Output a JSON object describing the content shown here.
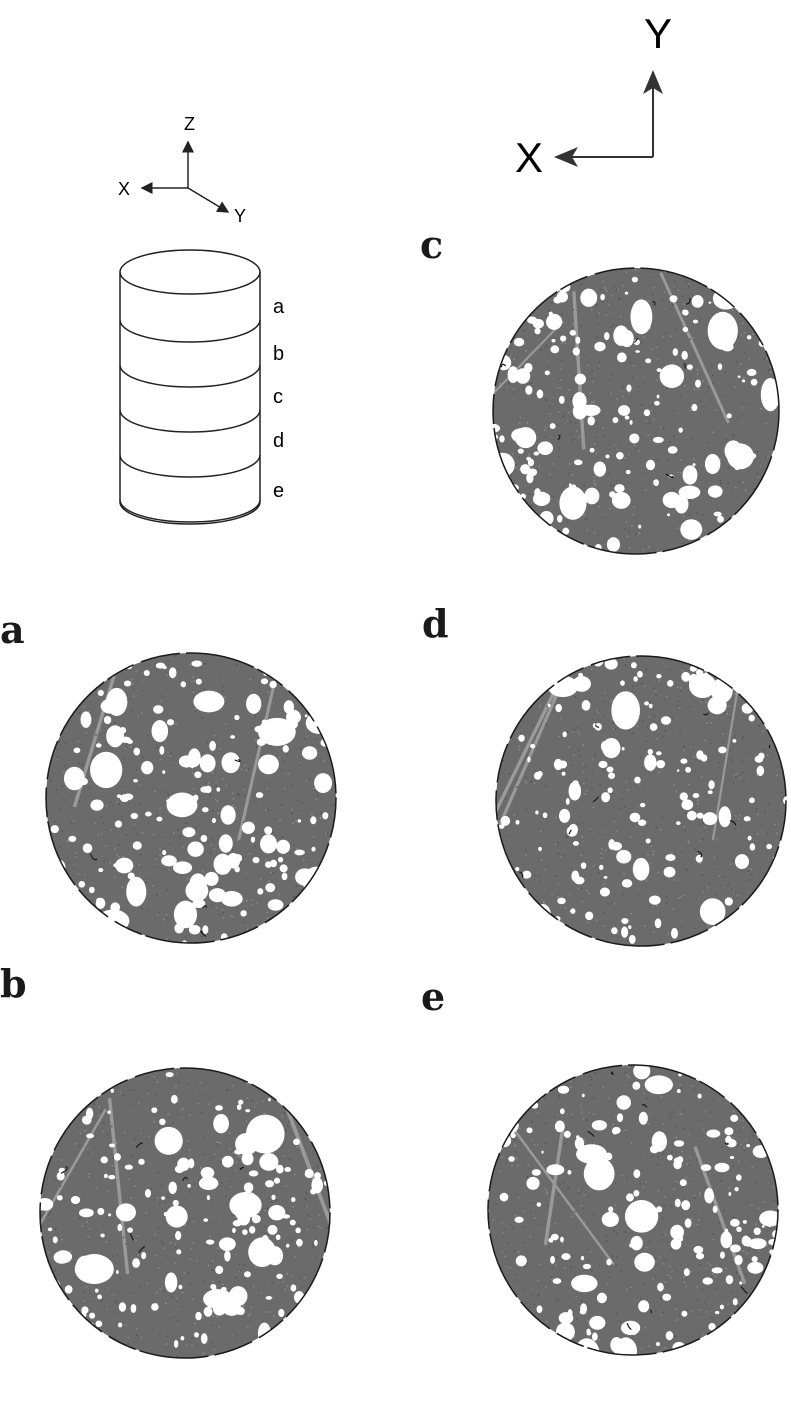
{
  "axes_3d": {
    "z": "Z",
    "x": "X",
    "y": "Y"
  },
  "axes_2d": {
    "x": "X",
    "y": "Y"
  },
  "cylinder_slices": [
    "a",
    "b",
    "c",
    "d",
    "e"
  ],
  "panels": {
    "a": {
      "label": "a"
    },
    "b": {
      "label": "b"
    },
    "c": {
      "label": "c"
    },
    "d": {
      "label": "d"
    },
    "e": {
      "label": "e"
    }
  },
  "colors": {
    "matrix_gray": "#6b6b6b",
    "pore_white": "#ffffff",
    "edge_dark": "#1a1a1a",
    "line": "#222222"
  }
}
